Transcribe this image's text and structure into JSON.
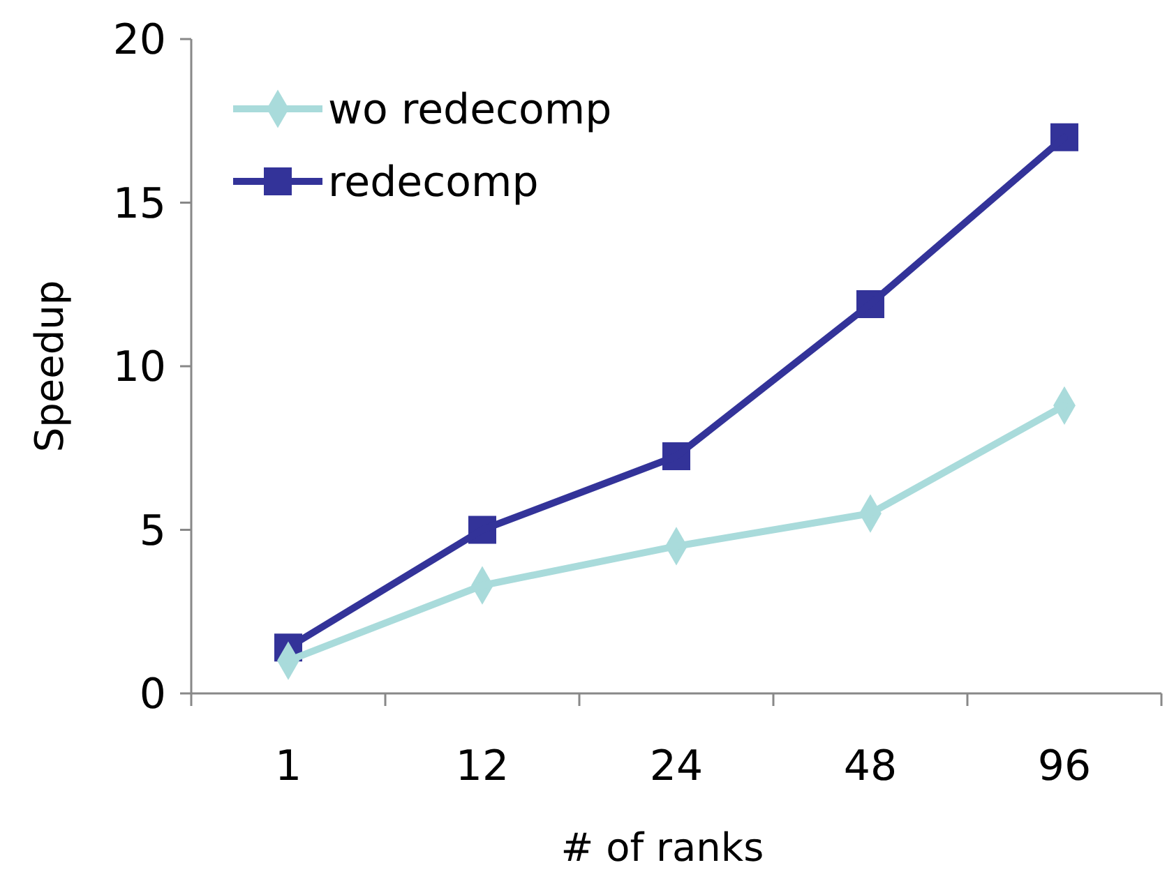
{
  "chart_data": {
    "type": "line",
    "xlabel": "# of ranks",
    "ylabel": "Speedup",
    "categories": [
      "1",
      "12",
      "24",
      "48",
      "96"
    ],
    "ylim": [
      0,
      20
    ],
    "yticks": [
      0,
      5,
      10,
      15,
      20
    ],
    "grid": false,
    "legend": "top left",
    "line_style": "solid",
    "series": [
      {
        "name": "wo redecomp",
        "color": "#a9dbdb",
        "marker": "diamond",
        "values": [
          1.0,
          3.3,
          4.5,
          5.5,
          8.8
        ]
      },
      {
        "name": "redecomp",
        "color": "#333399",
        "marker": "square",
        "values": [
          1.4,
          5.0,
          7.25,
          11.9,
          17.0
        ]
      }
    ]
  }
}
